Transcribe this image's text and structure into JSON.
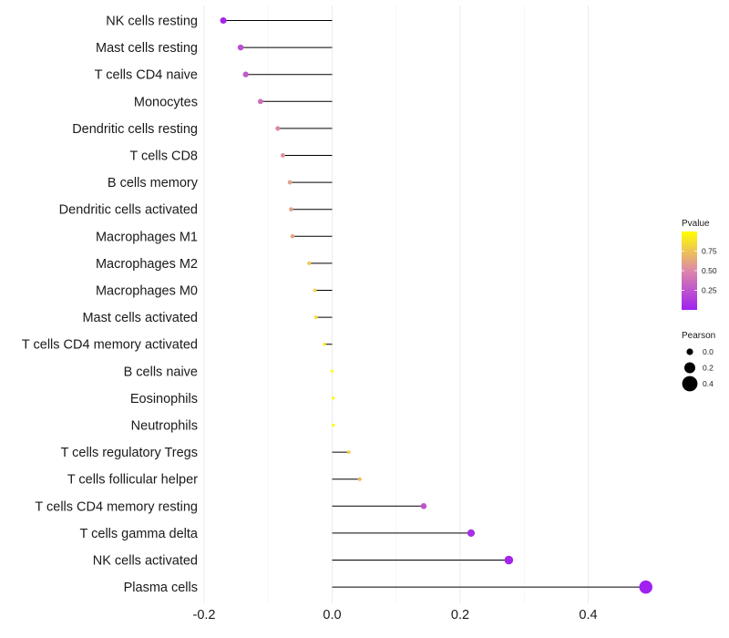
{
  "chart_data": {
    "type": "lollipop",
    "title": "",
    "xlabel": "",
    "ylabel": "",
    "xlim": [
      -0.2,
      0.5
    ],
    "x_ticks": [
      -0.2,
      0.0,
      0.2,
      0.4
    ],
    "x_tick_labels": [
      "-0.2",
      "0.0",
      "0.2",
      "0.4"
    ],
    "grid": true,
    "points": [
      {
        "category": "NK cells resting",
        "pearson": -0.17,
        "pvalue": 0.03
      },
      {
        "category": "Mast cells resting",
        "pearson": -0.143,
        "pvalue": 0.22
      },
      {
        "category": "T cells CD4 naive",
        "pearson": -0.135,
        "pvalue": 0.28
      },
      {
        "category": "Monocytes",
        "pearson": -0.112,
        "pvalue": 0.38
      },
      {
        "category": "Dendritic cells resting",
        "pearson": -0.085,
        "pvalue": 0.5
      },
      {
        "category": "T cells CD8",
        "pearson": -0.077,
        "pvalue": 0.55
      },
      {
        "category": "B cells memory",
        "pearson": -0.066,
        "pvalue": 0.6
      },
      {
        "category": "Dendritic cells activated",
        "pearson": -0.064,
        "pvalue": 0.6
      },
      {
        "category": "Macrophages M1",
        "pearson": -0.062,
        "pvalue": 0.62
      },
      {
        "category": "Macrophages M2",
        "pearson": -0.036,
        "pvalue": 0.78
      },
      {
        "category": "Macrophages M0",
        "pearson": -0.027,
        "pvalue": 0.82
      },
      {
        "category": "Mast cells activated",
        "pearson": -0.025,
        "pvalue": 0.83
      },
      {
        "category": "T cells CD4 memory activated",
        "pearson": -0.012,
        "pvalue": 0.92
      },
      {
        "category": "B cells naive",
        "pearson": 0.0,
        "pvalue": 1.0
      },
      {
        "category": "Eosinophils",
        "pearson": 0.002,
        "pvalue": 0.98
      },
      {
        "category": "Neutrophils",
        "pearson": 0.002,
        "pvalue": 0.98
      },
      {
        "category": "T cells regulatory  Tregs",
        "pearson": 0.026,
        "pvalue": 0.8
      },
      {
        "category": "T cells follicular helper",
        "pearson": 0.043,
        "pvalue": 0.72
      },
      {
        "category": "T cells CD4 memory resting",
        "pearson": 0.143,
        "pvalue": 0.25
      },
      {
        "category": "T cells gamma delta",
        "pearson": 0.217,
        "pvalue": 0.07
      },
      {
        "category": "NK cells activated",
        "pearson": 0.276,
        "pvalue": 0.03
      },
      {
        "category": "Plasma cells",
        "pearson": 0.49,
        "pvalue": 0.001
      }
    ],
    "legend": {
      "position": "right",
      "color_title": "Pvalue",
      "color_ticks": [
        0.25,
        0.5,
        0.75
      ],
      "color_tick_labels": [
        "0.25",
        "0.50",
        "0.75"
      ],
      "color_range": [
        0.0,
        1.0
      ],
      "color_low": "#A020F0",
      "color_mid": "#DD88AA",
      "color_high": "#FFFF00",
      "size_title": "Pearson",
      "size_entries": [
        {
          "label": "0.0",
          "value": 0.0
        },
        {
          "label": "0.2",
          "value": 0.2
        },
        {
          "label": "0.4",
          "value": 0.4
        }
      ]
    }
  }
}
